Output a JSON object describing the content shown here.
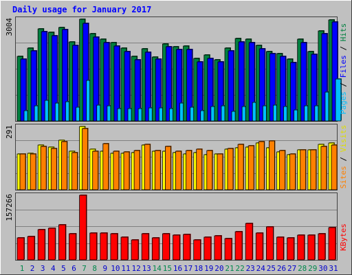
{
  "chart_data": [
    {
      "type": "bar",
      "title": "Daily usage for January 2017",
      "panel": "top",
      "categories": [
        "1",
        "2",
        "3",
        "4",
        "5",
        "6",
        "7",
        "8",
        "9",
        "10",
        "11",
        "12",
        "13",
        "14",
        "15",
        "16",
        "17",
        "18",
        "19",
        "20",
        "21",
        "22",
        "23",
        "24",
        "25",
        "26",
        "27",
        "28",
        "29",
        "30",
        "31"
      ],
      "y_tick_label": "3004",
      "ylim": [
        0,
        3004
      ],
      "series": [
        {
          "name": "Hits",
          "color": "#008040",
          "values": [
            1900,
            2150,
            2720,
            2610,
            2760,
            2330,
            3004,
            2570,
            2420,
            2310,
            2160,
            1910,
            2130,
            1890,
            2280,
            2190,
            2210,
            1840,
            1940,
            1810,
            2160,
            2430,
            2420,
            2230,
            2050,
            1990,
            1820,
            2410,
            2040,
            2650,
            2990
          ]
        },
        {
          "name": "Files",
          "color": "#0000ff",
          "values": [
            1820,
            2080,
            2640,
            2520,
            2700,
            2230,
            2890,
            2480,
            2320,
            2220,
            2060,
            1800,
            2020,
            1820,
            2190,
            2110,
            2110,
            1750,
            1850,
            1740,
            2080,
            2330,
            2310,
            2130,
            1980,
            1910,
            1720,
            2320,
            1970,
            2580,
            2920
          ]
        },
        {
          "name": "Pages",
          "color": "#00c0ff",
          "values": [
            310,
            450,
            600,
            520,
            560,
            410,
            1190,
            460,
            450,
            360,
            360,
            370,
            390,
            380,
            370,
            520,
            410,
            310,
            430,
            440,
            280,
            420,
            540,
            440,
            460,
            430,
            320,
            440,
            440,
            850,
            1240
          ]
        }
      ]
    },
    {
      "type": "bar",
      "panel": "middle",
      "categories": [
        "1",
        "2",
        "3",
        "4",
        "5",
        "6",
        "7",
        "8",
        "9",
        "10",
        "11",
        "12",
        "13",
        "14",
        "15",
        "16",
        "17",
        "18",
        "19",
        "20",
        "21",
        "22",
        "23",
        "24",
        "25",
        "26",
        "27",
        "28",
        "29",
        "30",
        "31"
      ],
      "y_tick_label": "291",
      "ylim": [
        0,
        291
      ],
      "series": [
        {
          "name": "Visits",
          "color": "#ffff00",
          "values": [
            166,
            169,
            206,
            196,
            228,
            177,
            291,
            186,
            178,
            168,
            168,
            172,
            206,
            176,
            178,
            170,
            166,
            171,
            160,
            166,
            186,
            194,
            197,
            214,
            193,
            174,
            162,
            184,
            185,
            208,
            216
          ]
        },
        {
          "name": "Sites",
          "color": "#ff8000",
          "values": [
            163,
            166,
            200,
            190,
            220,
            170,
            280,
            178,
            211,
            176,
            174,
            180,
            210,
            180,
            200,
            178,
            180,
            186,
            181,
            165,
            190,
            210,
            202,
            222,
            223,
            180,
            166,
            185,
            182,
            199,
            205
          ]
        }
      ]
    },
    {
      "type": "bar",
      "panel": "bottom",
      "categories": [
        "1",
        "2",
        "3",
        "4",
        "5",
        "6",
        "7",
        "8",
        "9",
        "10",
        "11",
        "12",
        "13",
        "14",
        "15",
        "16",
        "17",
        "18",
        "19",
        "20",
        "21",
        "22",
        "23",
        "24",
        "25",
        "26",
        "27",
        "28",
        "29",
        "30",
        "31"
      ],
      "y_tick_label": "157266",
      "ylim": [
        0,
        157266
      ],
      "series": [
        {
          "name": "KBytes",
          "color": "#ff0000",
          "values": [
            54000,
            57000,
            73000,
            77000,
            85000,
            63000,
            157266,
            66000,
            66000,
            63000,
            56000,
            48000,
            64000,
            54000,
            64000,
            61000,
            62000,
            49000,
            56000,
            58000,
            52000,
            69000,
            88000,
            66000,
            81000,
            55000,
            53000,
            60000,
            60000,
            64000,
            79000
          ]
        }
      ]
    }
  ],
  "weekend_days": [
    "1",
    "7",
    "8",
    "14",
    "15",
    "21",
    "22",
    "28",
    "29"
  ],
  "colors": {
    "background": "#c0c0c0",
    "grid": "#808080",
    "title": "#0000ff",
    "weekday_label": "#0000cc",
    "weekend_label": "#00884c",
    "border_dark": "#404040"
  }
}
